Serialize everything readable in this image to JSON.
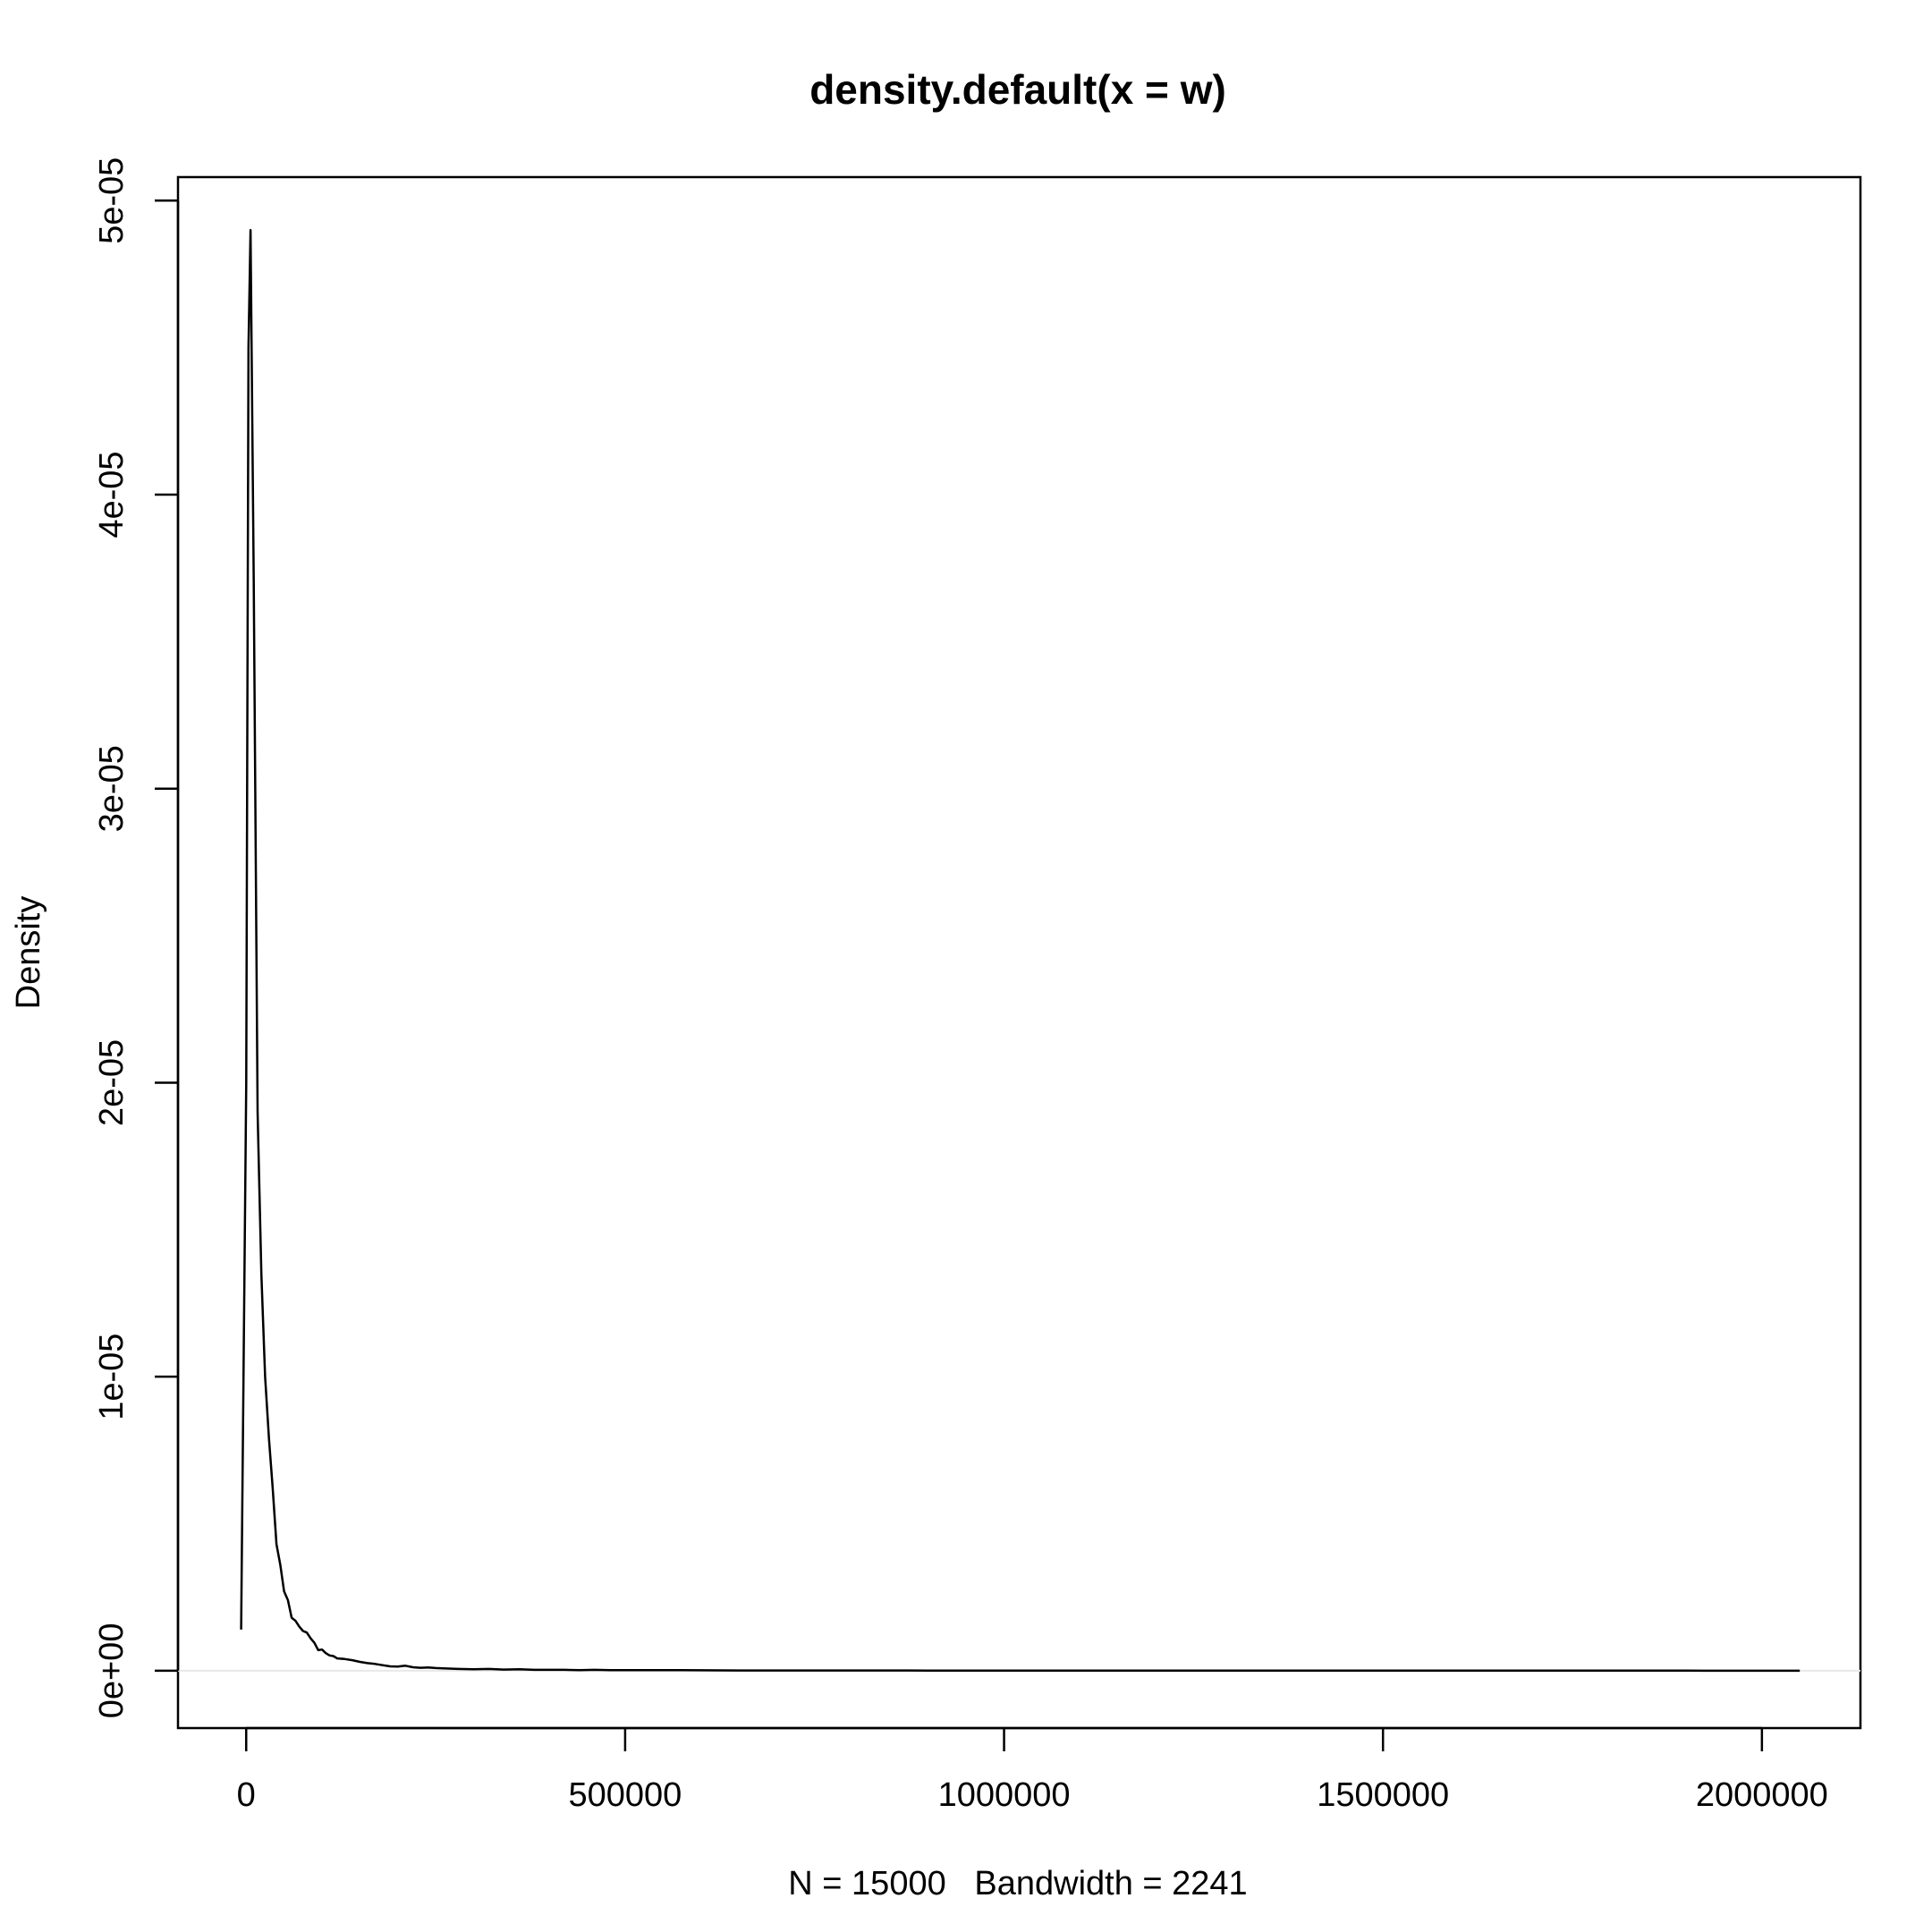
{
  "chart_data": {
    "type": "line",
    "title": "density.default(x = w)",
    "xlabel": "N = 15000   Bandwidth = 2241",
    "ylabel": "Density",
    "xlim": [
      -90000,
      2130000
    ],
    "ylim": [
      -1.95e-06,
      5.08e-05
    ],
    "x_ticks": [
      0,
      500000,
      1000000,
      1500000,
      2000000
    ],
    "x_tick_labels": [
      "0",
      "500000",
      "1000000",
      "1500000",
      "2000000"
    ],
    "y_ticks": [
      0,
      1e-05,
      2e-05,
      3e-05,
      4e-05,
      5e-05
    ],
    "y_tick_labels": [
      "0e+00",
      "1e-05",
      "2e-05",
      "3e-05",
      "4e-05",
      "5e-05"
    ],
    "zero_line": true,
    "grid": false,
    "series": [
      {
        "x": [
          -6700,
          0,
          3000,
          5700,
          10000,
          15000,
          20000,
          25000,
          30000,
          35000,
          40000,
          45000,
          50000,
          55000,
          60000,
          65000,
          70000,
          75000,
          80000,
          85000,
          90000,
          95000,
          100000,
          105000,
          110000,
          115000,
          120000,
          130000,
          140000,
          150000,
          160000,
          170000,
          180000,
          190000,
          200000,
          210000,
          220000,
          230000,
          240000,
          250000,
          260000,
          280000,
          300000,
          320000,
          340000,
          360000,
          380000,
          400000,
          420000,
          440000,
          460000,
          480000,
          500000,
          550000,
          600000,
          650000,
          700000,
          750000,
          800000,
          900000,
          1000000,
          1100000,
          1200000,
          1300000,
          1400000,
          1500000,
          1600000,
          1700000,
          1800000,
          1900000,
          2000000,
          2050000
        ],
        "y": [
          1.4e-06,
          2e-05,
          4.5e-05,
          4.9e-05,
          3.7e-05,
          1.9e-05,
          1.35e-05,
          1e-05,
          7.9e-06,
          6.2e-06,
          4.3e-06,
          3.6e-06,
          2.7e-06,
          2.4e-06,
          1.8e-06,
          1.7e-06,
          1.5e-06,
          1.35e-06,
          1.3e-06,
          1.1e-06,
          9.5e-07,
          7e-07,
          7.2e-07,
          6e-07,
          5.2e-07,
          5e-07,
          4.2e-07,
          4e-07,
          3.6e-07,
          3e-07,
          2.6e-07,
          2.3e-07,
          1.9e-07,
          1.5e-07,
          1.4e-07,
          1.7e-07,
          1.2e-07,
          1e-07,
          1.1e-07,
          9e-08,
          8e-08,
          6e-08,
          5e-08,
          6e-08,
          4e-08,
          5e-08,
          3e-08,
          3e-08,
          3e-08,
          2e-08,
          3e-08,
          2e-08,
          2e-08,
          2e-08,
          1.5e-08,
          1e-08,
          1e-08,
          8e-09,
          8e-09,
          6e-09,
          5e-09,
          4e-09,
          4e-09,
          3e-09,
          3e-09,
          3e-09,
          2e-09,
          2e-09,
          2e-09,
          2e-09,
          1e-09,
          1e-09
        ]
      }
    ]
  }
}
